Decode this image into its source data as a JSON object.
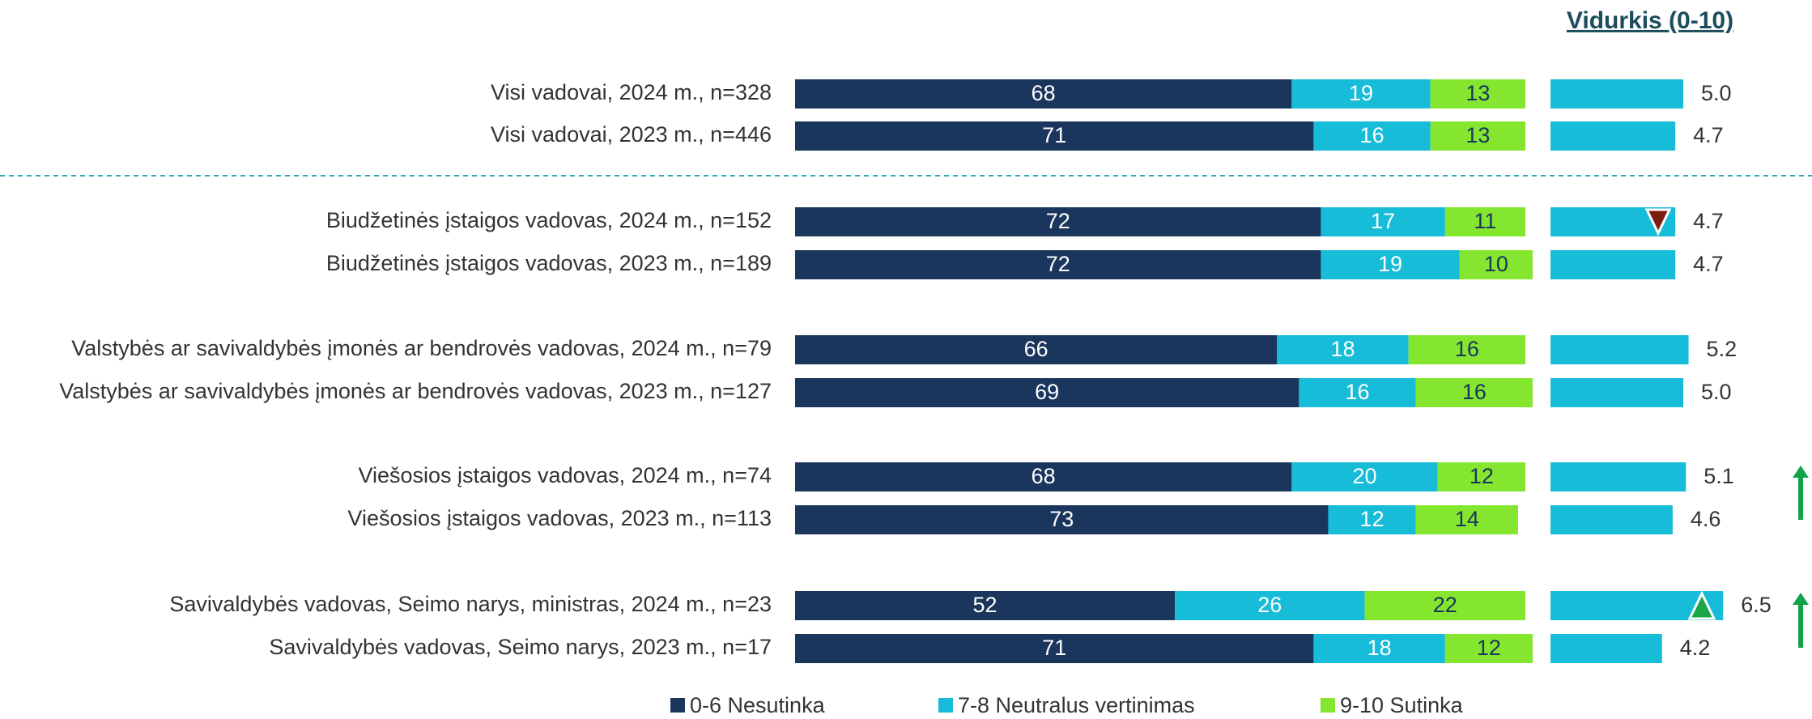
{
  "chart_data": [
    {
      "type": "stacked-bar",
      "orientation": "horizontal",
      "categories": [
        "Visi vadovai, 2024 m., n=328",
        "Visi vadovai, 2023 m., n=446",
        "Biudžetinės įstaigos vadovas, 2024 m., n=152",
        "Biudžetinės įstaigos vadovas, 2023 m., n=189",
        "Valstybės ar savivaldybės įmonės ar bendrovės vadovas, 2024 m., n=79",
        "Valstybės ar savivaldybės įmonės ar bendrovės vadovas, 2023 m., n=127",
        "Viešosios įstaigos vadovas, 2024 m.,  n=74",
        "Viešosios įstaigos vadovas, 2023 m.,  n=113",
        "Savivaldybės vadovas, Seimo narys, ministras, 2024 m.,  n=23",
        "Savivaldybės vadovas, Seimo narys, 2023 m.,  n=17"
      ],
      "series": [
        {
          "name": "0-6 Nesutinka",
          "color": "#1b365d",
          "values": [
            68,
            71,
            72,
            72,
            66,
            69,
            68,
            73,
            52,
            71
          ]
        },
        {
          "name": "7-8 Neutralus vertinimas",
          "color": "#17bcd8",
          "values": [
            19,
            16,
            17,
            19,
            18,
            16,
            20,
            12,
            26,
            18
          ]
        },
        {
          "name": "9-10 Sutinka",
          "color": "#84e62e",
          "values": [
            13,
            13,
            11,
            10,
            16,
            16,
            12,
            14,
            22,
            12
          ]
        }
      ],
      "xlim": [
        0,
        100
      ],
      "legend": "bottom"
    },
    {
      "type": "bar",
      "orientation": "horizontal",
      "title": "Vidurkis (0-10)",
      "color": "#17bcd8",
      "values": [
        5.0,
        4.7,
        4.7,
        4.7,
        5.2,
        5.0,
        5.1,
        4.6,
        6.5,
        4.2
      ],
      "value_labels": [
        "5.0",
        "4.7",
        "4.7",
        "4.7",
        "5.2",
        "5.0",
        "5.1",
        "4.6",
        "6.5",
        "4.2"
      ],
      "xlim": [
        0,
        10
      ]
    }
  ]
}
